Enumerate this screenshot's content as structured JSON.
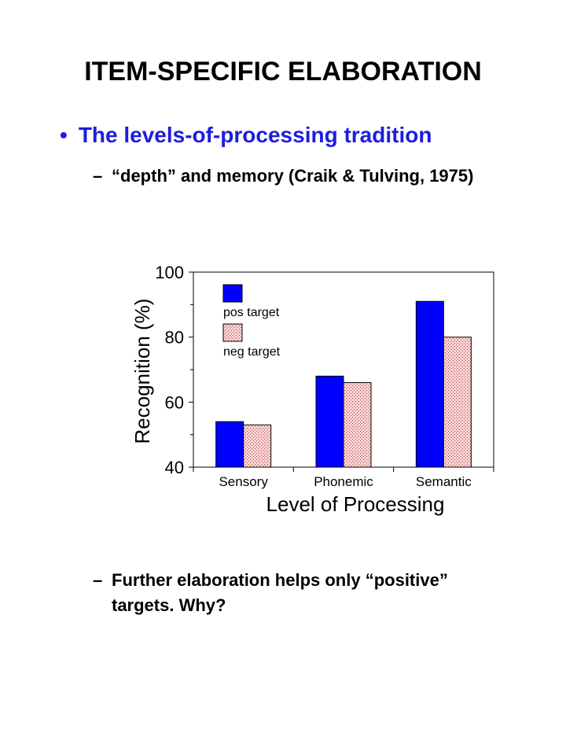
{
  "slide": {
    "title": "ITEM-SPECIFIC ELABORATION",
    "bullet": "The levels-of-processing tradition",
    "sub1": "“depth” and memory (Craik & Tulving, 1975)",
    "sub2": "Further elaboration helps only “positive” targets. Why?",
    "dash": "–",
    "bullet_glyph": "•"
  },
  "chart_data": {
    "type": "bar",
    "categories": [
      "Sensory",
      "Phonemic",
      "Semantic"
    ],
    "series": [
      {
        "name": "pos target",
        "values": [
          54,
          68,
          91
        ],
        "color": "#0000ff"
      },
      {
        "name": "neg target",
        "values": [
          53,
          66,
          80
        ],
        "color": "#f4c6c6"
      }
    ],
    "xlabel": "Level of Processing",
    "ylabel": "Recognition (%)",
    "ylim": [
      40,
      100
    ],
    "yticks": [
      40,
      60,
      80,
      100
    ],
    "grid": false,
    "legend": "top-left"
  }
}
